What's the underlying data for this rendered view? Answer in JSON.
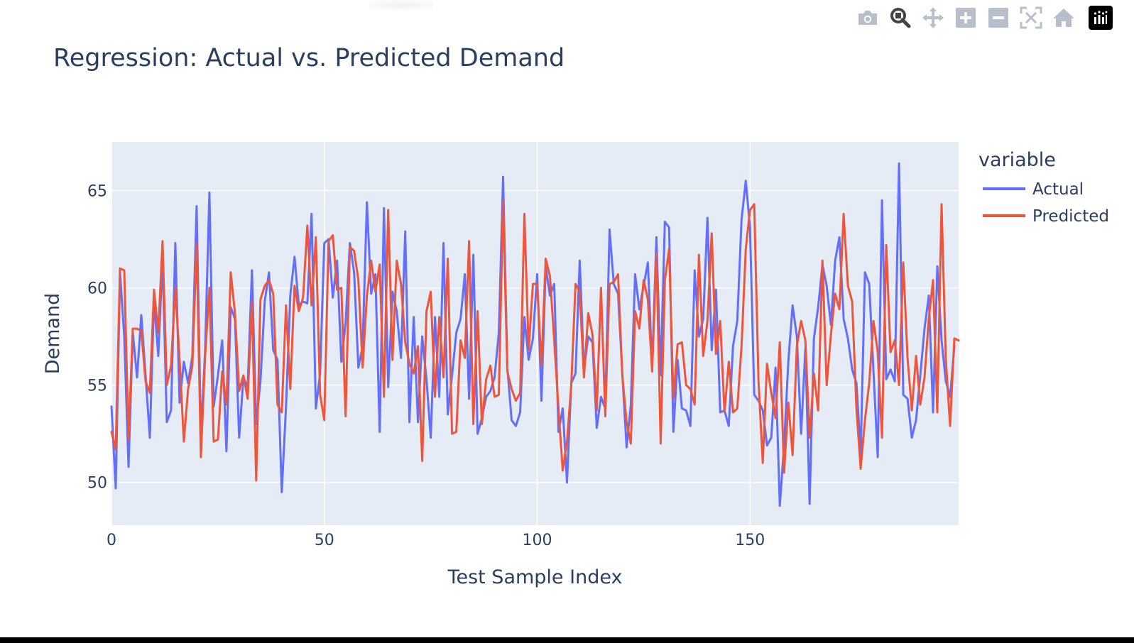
{
  "modebar": {
    "buttons": [
      {
        "name": "camera-icon",
        "label": "Download plot as a png"
      },
      {
        "name": "zoom-icon",
        "label": "Zoom"
      },
      {
        "name": "pan-icon",
        "label": "Pan"
      },
      {
        "name": "zoom-in-icon",
        "label": "Zoom in"
      },
      {
        "name": "zoom-out-icon",
        "label": "Zoom out"
      },
      {
        "name": "autoscale-icon",
        "label": "Autoscale"
      },
      {
        "name": "home-icon",
        "label": "Reset axes"
      }
    ],
    "logo": "plotly-logo-icon"
  },
  "chart_data": {
    "type": "line",
    "title": "Regression: Actual vs. Predicted Demand",
    "xlabel": "Test Sample Index",
    "ylabel": "Demand",
    "xlim": [
      0,
      199
    ],
    "ylim": [
      47.8,
      67.5
    ],
    "xticks": [
      0,
      50,
      100,
      150
    ],
    "yticks": [
      50,
      55,
      60,
      65
    ],
    "grid": true,
    "legend_title": "variable",
    "legend_position": "right",
    "colors": {
      "plot_bg": "#e5ecf6",
      "grid": "#ffffff",
      "text": "#2a3f5f"
    },
    "series": [
      {
        "name": "Actual",
        "color": "#636efa",
        "values": [
          53.9,
          49.7,
          60.8,
          57.5,
          50.8,
          57.7,
          55.4,
          58.6,
          55.5,
          52.3,
          59.4,
          56.5,
          61.5,
          53.1,
          53.7,
          62.3,
          54.1,
          56.2,
          55.1,
          56.5,
          64.2,
          52.4,
          56.8,
          64.9,
          53.9,
          55.5,
          57.3,
          51.6,
          59,
          58.4,
          52.3,
          55.4,
          54.9,
          60.9,
          53,
          55.2,
          59.3,
          60.8,
          56.8,
          56.3,
          49.5,
          53.9,
          59.6,
          61.6,
          59.1,
          59.3,
          59.2,
          63.8,
          53.8,
          55.6,
          62.3,
          62.5,
          59.5,
          61.4,
          56.2,
          58.2,
          62.3,
          60.8,
          55.9,
          57,
          64.4,
          59.7,
          60.7,
          52.6,
          64.1,
          54.9,
          59.8,
          58.8,
          56.4,
          62.9,
          53.1,
          58.5,
          53.1,
          57.5,
          55.3,
          52.3,
          58.5,
          54.4,
          62.3,
          53.5,
          55.5,
          57.7,
          58.4,
          60.7,
          54.3,
          61.7,
          52.5,
          53.3,
          54.4,
          54.7,
          55.4,
          57.7,
          65.7,
          55.9,
          53.2,
          52.9,
          53.6,
          58.5,
          56.3,
          57.4,
          60.7,
          54.2,
          61.1,
          59.6,
          60.2,
          52.6,
          53.8,
          50,
          55.1,
          55.6,
          61.4,
          55.8,
          57.5,
          57.2,
          52.8,
          54.4,
          53.8,
          63,
          60.2,
          59.7,
          55.6,
          51.8,
          54,
          60.7,
          58.9,
          60.1,
          61.3,
          55.9,
          62.6,
          55.5,
          63.4,
          63.1,
          52.6,
          56.3,
          53.8,
          53.7,
          52.9,
          60.9,
          57.5,
          58.4,
          63.6,
          56.8,
          59.9,
          53.6,
          53.7,
          52.9,
          57,
          58.3,
          63.5,
          65.5,
          63.1,
          54.5,
          54.2,
          53.7,
          51.9,
          52.3,
          55.9,
          48.8,
          51.9,
          56.2,
          59.1,
          57.5,
          52.5,
          56.9,
          48.9,
          57.4,
          59,
          61.2,
          60.1,
          58.1,
          61.4,
          62.6,
          58.4,
          57.4,
          55.8,
          55.1,
          51.5,
          60.8,
          60.2,
          55.7,
          51.3,
          64.5,
          55.3,
          55.8,
          55.2,
          66.4,
          54.5,
          54.3,
          52.3,
          53.2,
          55.5,
          57.9,
          59.6,
          53.6,
          61.1,
          57.3,
          55.2,
          54.4,
          57
        ]
      },
      {
        "name": "Predicted",
        "color": "#ef553b",
        "values": [
          52.6,
          51.7,
          61,
          60.9,
          52.2,
          57.9,
          57.9,
          57.8,
          55.2,
          54.6,
          59.9,
          57.7,
          62.4,
          55,
          56,
          60,
          56.3,
          52.1,
          54.8,
          56,
          62.3,
          51.3,
          56.5,
          60,
          52.1,
          52.2,
          55.7,
          54,
          60.8,
          58.7,
          54.7,
          55.5,
          54.3,
          59.3,
          50.1,
          59.4,
          60.1,
          60.4,
          59.7,
          54,
          53.6,
          59.1,
          54.8,
          60.1,
          58.8,
          59.5,
          63.2,
          59.1,
          62.6,
          54.5,
          53.2,
          62.4,
          62.7,
          59.9,
          60,
          53.4,
          62.1,
          61.9,
          60.4,
          55.9,
          59.6,
          61.4,
          59.8,
          61.2,
          54.4,
          64,
          56.3,
          61.4,
          60.2,
          57.2,
          56.1,
          55.6,
          57,
          51.1,
          58.8,
          59.8,
          54.4,
          58.5,
          55.4,
          61.5,
          52.5,
          52.6,
          57.3,
          56.4,
          62.4,
          53,
          58.8,
          53,
          55.3,
          56,
          54.4,
          54.5,
          64.5,
          55.7,
          54.8,
          54.2,
          54.6,
          63.8,
          56.8,
          60.2,
          60.2,
          56,
          61.5,
          60.6,
          57.3,
          53.8,
          50.6,
          52.1,
          55,
          60.2,
          59.8,
          55.4,
          58.7,
          57.6,
          53.7,
          60,
          53.4,
          60.2,
          60.3,
          60.7,
          55.5,
          53.1,
          52,
          58.8,
          57.9,
          60.4,
          59.4,
          55.7,
          61.8,
          52,
          60.4,
          62,
          54.3,
          57.1,
          57.2,
          55,
          54.8,
          54,
          61.7,
          56.5,
          58.3,
          62.8,
          56.6,
          58.3,
          53.6,
          56.2,
          53.6,
          53.8,
          57,
          62,
          64,
          64.3,
          55.2,
          51,
          56.1,
          54.6,
          53.3,
          57.2,
          50.5,
          54.1,
          51.4,
          57,
          58.3,
          57.3,
          52.3,
          55.6,
          53.7,
          61.4,
          55,
          57.6,
          59.7,
          58.9,
          63.8,
          60.1,
          59.3,
          53.8,
          50.7,
          53.2,
          55.1,
          58.3,
          56.7,
          52.3,
          62.2,
          56.7,
          57.3,
          55,
          61.3,
          56.4,
          53.7,
          56.5,
          54,
          55.4,
          58.4,
          60.4,
          53.6,
          64.3,
          56.3,
          52.9,
          57.4,
          57.3
        ]
      }
    ]
  }
}
